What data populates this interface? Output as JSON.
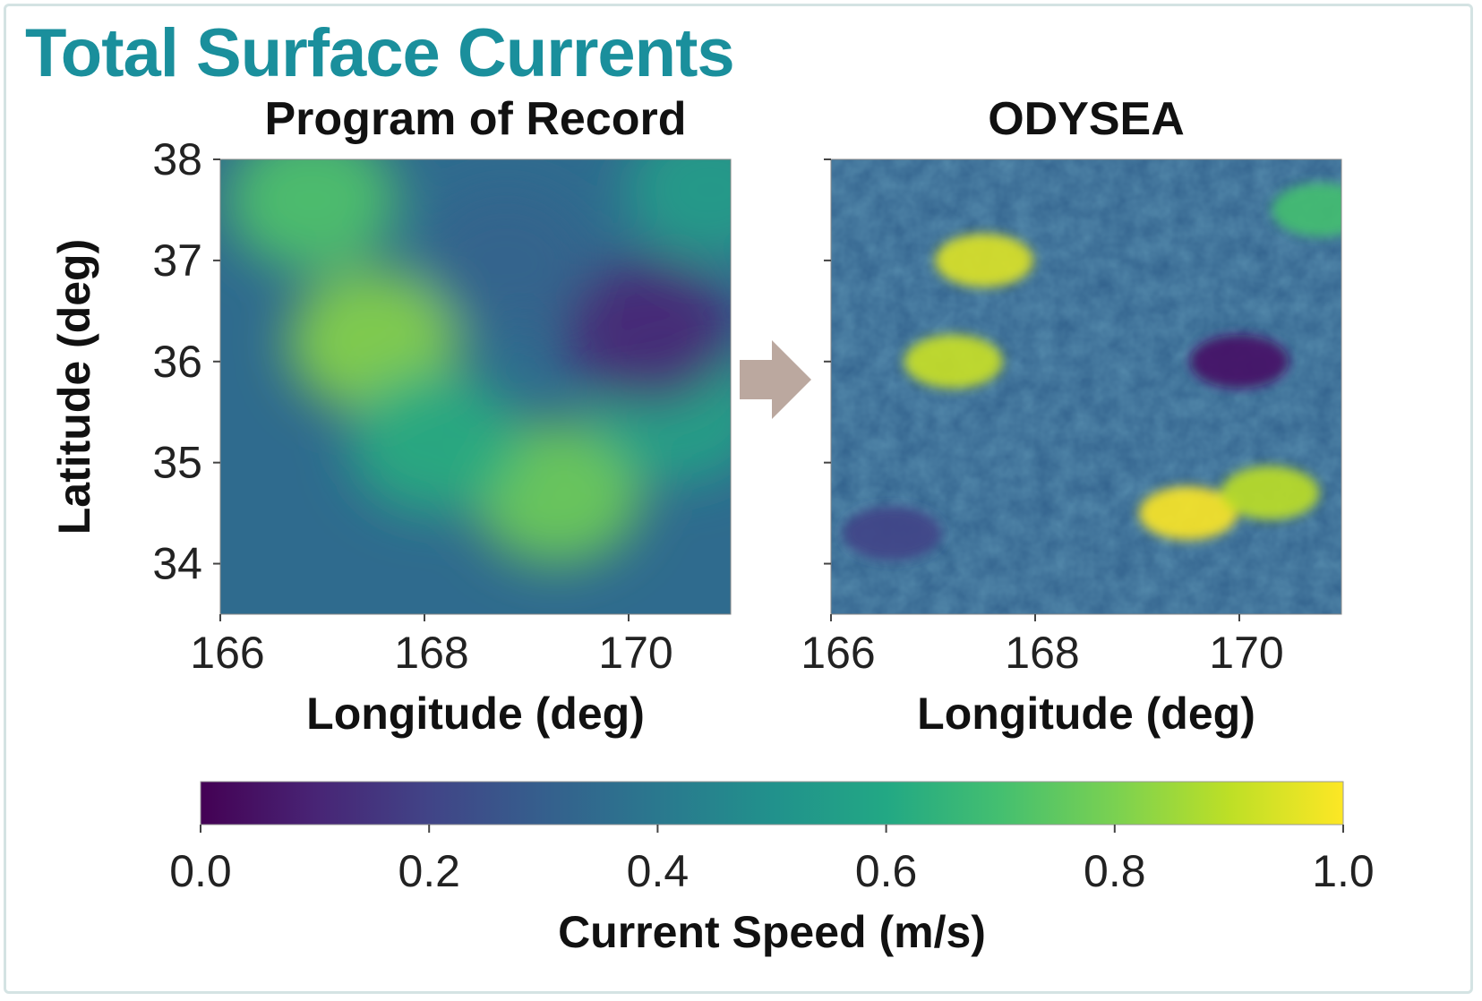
{
  "title": "Total Surface Currents",
  "colors": {
    "title": "#1a8f9c",
    "arrow": "#bba89f",
    "colormap": [
      "#440154",
      "#3b528b",
      "#21918c",
      "#5ec962",
      "#fde725"
    ]
  },
  "chart_data": [
    {
      "type": "heatmap",
      "title": "Program of Record",
      "xlabel": "Longitude (deg)",
      "ylabel": "Latitude (deg)",
      "xlim": [
        166,
        171
      ],
      "ylim": [
        33.5,
        38
      ],
      "xticks": [
        166,
        168,
        170
      ],
      "yticks": [
        34,
        35,
        36,
        37,
        38
      ],
      "x_tick_labels": [
        "166",
        "168",
        "170"
      ],
      "y_tick_labels": [
        "34",
        "35",
        "36",
        "37",
        "38"
      ],
      "colormap": "viridis",
      "features": [
        {
          "lon": 167.5,
          "lat": 36.2,
          "speed": 0.82
        },
        {
          "lon": 166.9,
          "lat": 37.6,
          "speed": 0.72
        },
        {
          "lon": 169.3,
          "lat": 34.7,
          "speed": 0.78
        },
        {
          "lon": 168.1,
          "lat": 35.2,
          "speed": 0.62
        },
        {
          "lon": 170.5,
          "lat": 35.5,
          "speed": 0.58
        },
        {
          "lon": 170.2,
          "lat": 36.3,
          "speed": 0.1
        },
        {
          "lon": 168.8,
          "lat": 37.0,
          "speed": 0.32
        },
        {
          "lon": 170.8,
          "lat": 37.7,
          "speed": 0.55
        }
      ]
    },
    {
      "type": "heatmap",
      "title": "ODYSEA",
      "xlabel": "Longitude (deg)",
      "ylabel": "Latitude (deg)",
      "xlim": [
        166,
        171
      ],
      "ylim": [
        33.5,
        38
      ],
      "xticks": [
        166,
        168,
        170
      ],
      "yticks": [
        34,
        35,
        36,
        37,
        38
      ],
      "x_tick_labels": [
        "166",
        "168",
        "170"
      ],
      "y_tick_labels": [],
      "colormap": "viridis",
      "features": [
        {
          "lon": 167.5,
          "lat": 37.0,
          "speed": 0.95
        },
        {
          "lon": 167.2,
          "lat": 36.0,
          "speed": 0.92
        },
        {
          "lon": 169.5,
          "lat": 34.5,
          "speed": 1.0
        },
        {
          "lon": 170.3,
          "lat": 34.7,
          "speed": 0.9
        },
        {
          "lon": 170.0,
          "lat": 36.0,
          "speed": 0.05
        },
        {
          "lon": 170.8,
          "lat": 37.5,
          "speed": 0.7
        },
        {
          "lon": 166.6,
          "lat": 34.3,
          "speed": 0.2
        }
      ]
    }
  ],
  "colorbar": {
    "label": "Current Speed (m/s)",
    "ticks": [
      0.0,
      0.2,
      0.4,
      0.6,
      0.8,
      1.0
    ],
    "tick_labels": [
      "0.0",
      "0.2",
      "0.4",
      "0.6",
      "0.8",
      "1.0"
    ],
    "range": [
      0.0,
      1.0
    ],
    "colormap": "viridis"
  }
}
